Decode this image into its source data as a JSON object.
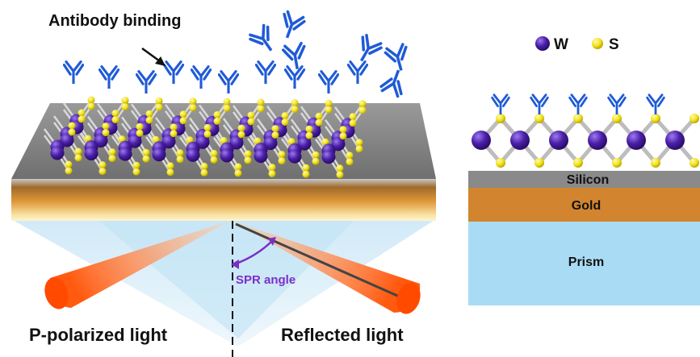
{
  "labels": {
    "antibody_binding": "Antibody binding",
    "spr_angle": "SPR angle",
    "p_polarized": "P-polarized light",
    "reflected": "Reflected light",
    "legend_w": "W",
    "legend_s": "S",
    "layer_silicon": "Silicon",
    "layer_gold": "Gold",
    "layer_prism": "Prism"
  },
  "colors": {
    "tungsten": "#4b1fa6",
    "sulfur": "#f2e21a",
    "antibody": "#1f5bd6",
    "silicon": "#808080",
    "gold": "#d38a34",
    "prism": "#a9dcf4",
    "beam": "#ff5a10",
    "spr_arrow": "#7a2fc9"
  },
  "icons": [
    "antibody-icon",
    "tungsten-atom-icon",
    "sulfur-atom-icon"
  ]
}
